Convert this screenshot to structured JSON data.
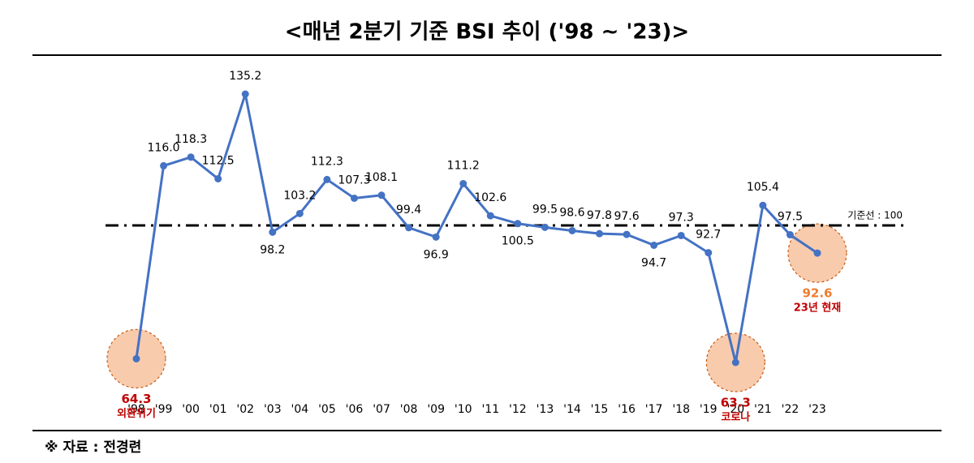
{
  "chart_data": {
    "type": "line",
    "title": "<매년 2분기 기준 BSI 추이 ('98 ~ '23)>",
    "categories": [
      "'98",
      "'99",
      "'00",
      "'01",
      "'02",
      "'03",
      "'04",
      "'05",
      "'06",
      "'07",
      "'08",
      "'09",
      "'10",
      "'11",
      "'12",
      "'13",
      "'14",
      "'15",
      "'16",
      "'17",
      "'18",
      "'19",
      "'20",
      "'21",
      "'22",
      "'23"
    ],
    "values": [
      64.3,
      116.0,
      118.3,
      112.5,
      135.2,
      98.2,
      103.2,
      112.3,
      107.3,
      108.1,
      99.4,
      96.9,
      111.2,
      102.6,
      100.5,
      99.5,
      98.6,
      97.8,
      97.6,
      94.7,
      97.3,
      92.7,
      63.3,
      105.4,
      97.5,
      92.6
    ],
    "value_labels": [
      "64.3",
      "116.0",
      "118.3",
      "112.5",
      "135.2",
      "98.2",
      "103.2",
      "112.3",
      "107.3",
      "108.1",
      "99.4",
      "96.9",
      "111.2",
      "102.6",
      "100.5",
      "99.5",
      "98.6",
      "97.8",
      "97.6",
      "94.7",
      "97.3",
      "92.7",
      "63.3",
      "105.4",
      "97.5",
      "92.6"
    ],
    "color": "#4472c4",
    "reference_line": {
      "value": 100,
      "label": "기준선 : 100"
    },
    "highlights": [
      {
        "category": "'98",
        "note": "외환위기",
        "color": "#c00000"
      },
      {
        "category": "'20",
        "note": "코로나",
        "color": "#c00000"
      },
      {
        "category": "'23",
        "note": "23년 현재",
        "color": "#ed7d31",
        "note_color": "#c00000"
      }
    ],
    "source": "※ 자료 : 전경련"
  }
}
